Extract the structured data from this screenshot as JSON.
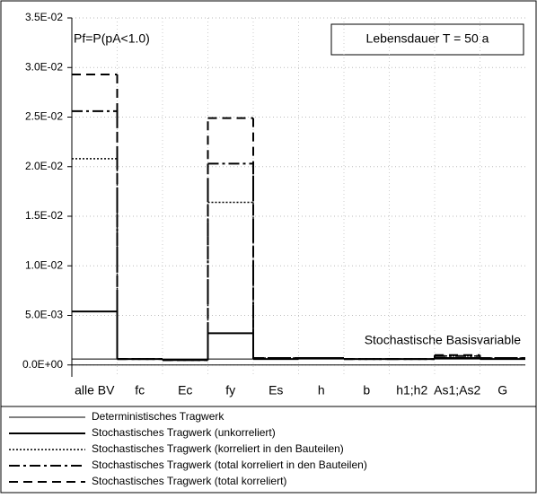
{
  "chart_data": {
    "type": "step",
    "annotations": [
      "Pf=P(pA<1.0)",
      "Lebensdauer  T = 50 a",
      "Stochastische Basisvariable"
    ],
    "categories": [
      "alle BV",
      "fc",
      "Ec",
      "fy",
      "Es",
      "h",
      "b",
      "h1;h2",
      "As1;As2",
      "G"
    ],
    "ylim": [
      -0.0012,
      0.035
    ],
    "yticks": [
      {
        "value": 0,
        "label": "0.0E+00"
      },
      {
        "value": 0.005,
        "label": "5.0E-03"
      },
      {
        "value": 0.01,
        "label": "1.0E-02"
      },
      {
        "value": 0.015,
        "label": "1.5E-02"
      },
      {
        "value": 0.02,
        "label": "2.0E-02"
      },
      {
        "value": 0.025,
        "label": "2.5E-02"
      },
      {
        "value": 0.03,
        "label": "3.0E-02"
      },
      {
        "value": 0.035,
        "label": "3.5E-02"
      }
    ],
    "grid": true,
    "series": [
      {
        "name": "Deterministisches Tragwerk",
        "color": "#000000",
        "width": 1,
        "dash": "none",
        "values": [
          0.0006,
          0.0006,
          0.0006,
          0.0006,
          0.0006,
          0.0006,
          0.0006,
          0.0006,
          0.0006,
          0.0006
        ]
      },
      {
        "name": "Stochastisches Tragwerk (unkorreliert)",
        "color": "#000000",
        "width": 2,
        "dash": "none",
        "values": [
          0.0054,
          0.0006,
          0.0005,
          0.0032,
          0.0006,
          0.0007,
          0.0006,
          0.0006,
          0.0007,
          0.0006
        ]
      },
      {
        "name": "Stochastisches Tragwerk (korreliert in den Bauteilen)",
        "color": "#000000",
        "width": 1.5,
        "dash": "2 2",
        "values": [
          0.0208,
          0.0006,
          0.0005,
          0.0164,
          0.0007,
          0.0007,
          0.0006,
          0.0006,
          0.0009,
          0.0007
        ]
      },
      {
        "name": "Stochastisches Tragwerk (total korreliert in den Bauteilen)",
        "color": "#000000",
        "width": 2,
        "dash": "12 4 3 4",
        "values": [
          0.0256,
          0.0006,
          0.0005,
          0.0203,
          0.0007,
          0.0007,
          0.0006,
          0.0006,
          0.0009,
          0.0007
        ]
      },
      {
        "name": "Stochastisches Tragwerk (total korreliert)",
        "color": "#000000",
        "width": 2,
        "dash": "10 6",
        "values": [
          0.0293,
          0.0006,
          0.0005,
          0.0249,
          0.0007,
          0.0007,
          0.0006,
          0.0006,
          0.001,
          0.0007
        ]
      }
    ]
  }
}
